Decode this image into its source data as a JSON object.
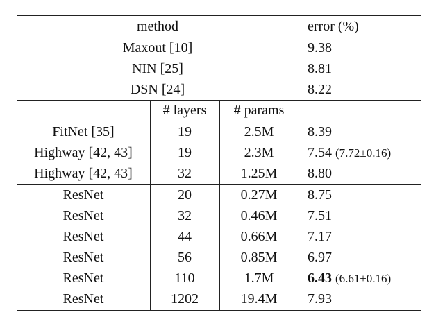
{
  "header": {
    "method": "method",
    "error": "error (%)"
  },
  "subheader": {
    "layers": "# layers",
    "params": "# params"
  },
  "top_rows": [
    {
      "method": "Maxout [10]",
      "error": "9.38"
    },
    {
      "method": "NIN [25]",
      "error": "8.81"
    },
    {
      "method": "DSN [24]",
      "error": "8.22"
    }
  ],
  "mid_rows": [
    {
      "method": "FitNet [35]",
      "layers": "19",
      "params": "2.5M",
      "error": "8.39",
      "note": ""
    },
    {
      "method": "Highway [42, 43]",
      "layers": "19",
      "params": "2.3M",
      "error": "7.54",
      "note": "(7.72±0.16)"
    },
    {
      "method": "Highway [42, 43]",
      "layers": "32",
      "params": "1.25M",
      "error": "8.80",
      "note": ""
    }
  ],
  "resnet_rows": [
    {
      "method": "ResNet",
      "layers": "20",
      "params": "0.27M",
      "error": "8.75",
      "note": ""
    },
    {
      "method": "ResNet",
      "layers": "32",
      "params": "0.46M",
      "error": "7.51",
      "note": ""
    },
    {
      "method": "ResNet",
      "layers": "44",
      "params": "0.66M",
      "error": "7.17",
      "note": ""
    },
    {
      "method": "ResNet",
      "layers": "56",
      "params": "0.85M",
      "error": "6.97",
      "note": ""
    },
    {
      "method": "ResNet",
      "layers": "110",
      "params": "1.7M",
      "error": "6.43",
      "note": "(6.61±0.16)"
    },
    {
      "method": "ResNet",
      "layers": "1202",
      "params": "19.4M",
      "error": "7.93",
      "note": ""
    }
  ]
}
